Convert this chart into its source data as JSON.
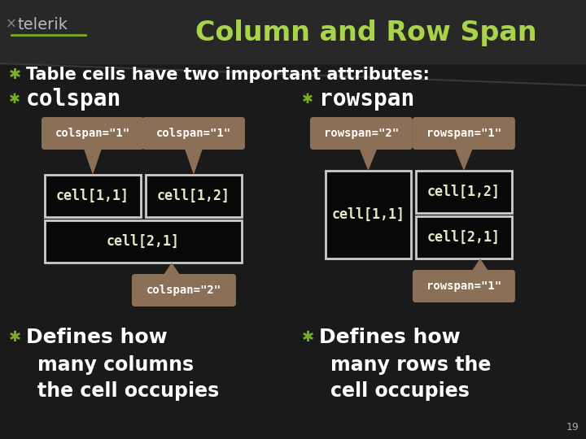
{
  "title": "Column and Row Span",
  "title_color": "#a8d44a",
  "bg_dark": "#1a1a1a",
  "bg_header": "#2a2a2a",
  "telerik_text": "telerik",
  "telerik_color": "#bbbbbb",
  "telerik_underline_color": "#7ab020",
  "bullet_color": "#7ab020",
  "bullet_char": "✱",
  "white_text": "#ffffff",
  "cell_bg": "#080808",
  "cell_border": "#cccccc",
  "tooltip_bg": "#8b7057",
  "tooltip_text": "#ffffff",
  "slide_number": "19",
  "header_text": "Table cells have two important attributes:",
  "colspan_label": "colspan",
  "rowspan_label": "rowspan",
  "defines_colspan": [
    "Defines how",
    "many columns",
    "the cell occupies"
  ],
  "defines_rowspan": [
    "Defines how",
    "many rows the",
    "cell occupies"
  ],
  "cell_text_color": "#e8e8c8"
}
